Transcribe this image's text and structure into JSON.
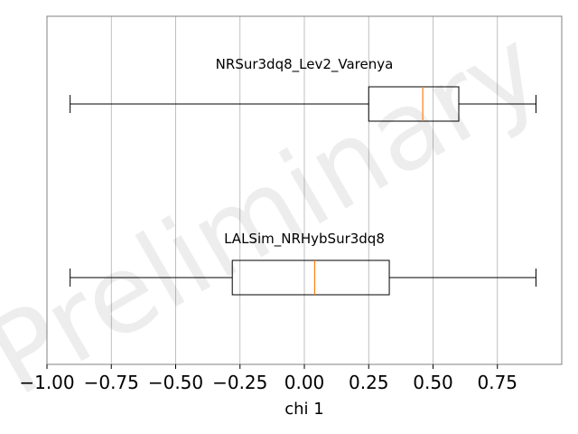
{
  "chart_data": {
    "type": "boxplot",
    "orientation": "horizontal",
    "xlabel": "chi 1",
    "xlim": [
      -1.0,
      1.0
    ],
    "xticks": [
      -1.0,
      -0.75,
      -0.5,
      -0.25,
      0.0,
      0.25,
      0.5,
      0.75
    ],
    "xtick_labels": [
      "−1.00",
      "−0.75",
      "−0.50",
      "−0.25",
      "0.00",
      "0.25",
      "0.50",
      "0.75"
    ],
    "grid": "vertical",
    "watermark": "Preliminary",
    "median_color": "#ff7f0e",
    "box_color": "#000000",
    "boxes": [
      {
        "name": "NRSur3dq8_Lev2_Varenya",
        "whisker_low": -0.91,
        "q1": 0.25,
        "median": 0.46,
        "q3": 0.6,
        "whisker_high": 0.9
      },
      {
        "name": "LALSim_NRHybSur3dq8",
        "whisker_low": -0.91,
        "q1": -0.28,
        "median": 0.04,
        "q3": 0.33,
        "whisker_high": 0.9
      }
    ]
  }
}
